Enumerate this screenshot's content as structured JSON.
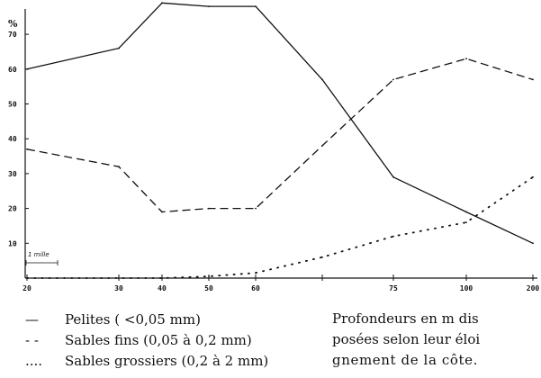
{
  "chart_data": {
    "type": "line",
    "title": "",
    "ylabel": "%",
    "xlabel": "",
    "x_categories": [
      "20",
      "30",
      "40",
      "50",
      "60",
      "",
      "75",
      "100",
      "200"
    ],
    "y_ticks": [
      10,
      20,
      30,
      40,
      50,
      60,
      70
    ],
    "ylim": [
      0,
      80
    ],
    "grid": false,
    "scale_label": "1 mille",
    "series": [
      {
        "name": "Pelites (<0,05 mm)",
        "style": "solid",
        "legend_symbol": "—",
        "x": [
          "20",
          "30",
          "40",
          "50",
          "60",
          "",
          "75",
          "100",
          "200"
        ],
        "values": [
          60,
          66,
          79,
          78,
          78,
          57,
          29,
          19,
          10
        ]
      },
      {
        "name": "Sables fins (0,05 à 0,2 mm)",
        "style": "dashed",
        "legend_symbol": "- -",
        "x": [
          "20",
          "30",
          "40",
          "50",
          "60",
          "",
          "75",
          "100",
          "200"
        ],
        "values": [
          37,
          32,
          19,
          20,
          20,
          38,
          57,
          63,
          57
        ]
      },
      {
        "name": "Sables grossiers (0,2 à 2 mm)",
        "style": "dotted",
        "legend_symbol": "....",
        "x": [
          "20",
          "30",
          "40",
          "50",
          "60",
          "",
          "75",
          "100",
          "200"
        ],
        "values": [
          0,
          0,
          0,
          0.5,
          1.5,
          6,
          12,
          16,
          29
        ]
      }
    ],
    "legend_placement": "bottom-left"
  },
  "legend": {
    "items": [
      {
        "symbol": "—",
        "label": "Pelites ( <0,05 mm)"
      },
      {
        "symbol": "- -",
        "label": "Sables fins (0,05 à 0,2 mm)"
      },
      {
        "symbol": "....",
        "label": "Sables grossiers (0,2 à 2 mm)"
      }
    ]
  },
  "note": {
    "lines": [
      "Profondeurs en m dis",
      "posées selon leur éloi",
      "gnement de la côte."
    ]
  }
}
